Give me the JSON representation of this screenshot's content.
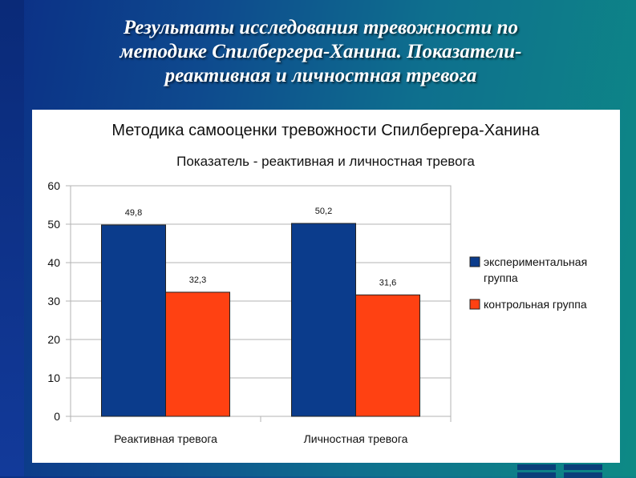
{
  "slide": {
    "title_line1": "Результаты исследования тревожности по",
    "title_line2": "методике Спилбергера-Ханина. Показатели-",
    "title_line3": "реактивная и личностная тревога"
  },
  "chart_data": {
    "type": "bar",
    "title": "Методика самооценки тревожности Спилбергера-Ханина",
    "subtitle": "Показатель - реактивная и личностная тревога",
    "categories": [
      "Реактивная тревога",
      "Личностная тревога"
    ],
    "series": [
      {
        "name_line1": "экспериментальная",
        "name_line2": "группа",
        "values": [
          49.8,
          50.2
        ],
        "labels": [
          "49,8",
          "50,2"
        ],
        "color": "#0b3c8c"
      },
      {
        "name_line1": "контрольная группа",
        "name_line2": "",
        "values": [
          32.3,
          31.6
        ],
        "labels": [
          "32,3",
          "31,6"
        ],
        "color": "#ff4112"
      }
    ],
    "yticks": [
      "0",
      "10",
      "20",
      "30",
      "40",
      "50",
      "60"
    ],
    "ylim": [
      0,
      60
    ],
    "grid": true,
    "legend": "right"
  }
}
